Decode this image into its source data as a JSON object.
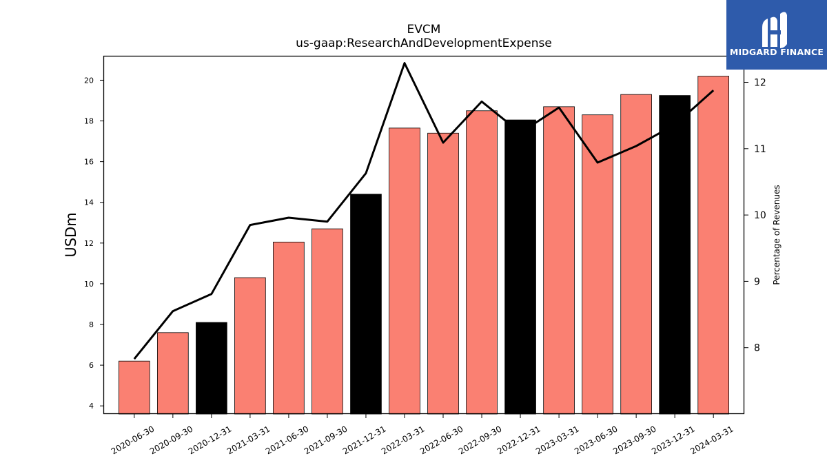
{
  "brand": {
    "name": "MIDGARD FINANCE",
    "bg_color": "#2e5bab",
    "icon": "midgard-logo-icon"
  },
  "chart_data": {
    "type": "bar",
    "title": "EVCM",
    "subtitle": "us-gaap:ResearchAndDevelopmentExpense",
    "ylabel": "USDm",
    "y2label": "Percentage of Revenues",
    "ylim": [
      3.6,
      21.2
    ],
    "y2lim": [
      7.0,
      12.4
    ],
    "yticks": [
      4,
      6,
      8,
      10,
      12,
      14,
      16,
      18,
      20
    ],
    "y2ticks": [
      8,
      9,
      10,
      11,
      12
    ],
    "grid": false,
    "categories": [
      "2020-06-30",
      "2020-09-30",
      "2020-12-31",
      "2021-03-31",
      "2021-06-30",
      "2021-09-30",
      "2021-12-31",
      "2022-03-31",
      "2022-06-30",
      "2022-09-30",
      "2022-12-31",
      "2023-03-31",
      "2023-06-30",
      "2023-09-30",
      "2023-12-31",
      "2024-03-31"
    ],
    "series": [
      {
        "kind": "bar",
        "axis": "left",
        "color": "#fa8072",
        "highlight_color": "#000000",
        "highlight_indices": [
          2,
          6,
          10,
          14
        ],
        "values": [
          6.2,
          7.6,
          8.1,
          10.3,
          12.05,
          12.7,
          14.4,
          17.65,
          17.4,
          18.5,
          18.05,
          18.7,
          18.3,
          19.3,
          19.25,
          20.2
        ]
      },
      {
        "kind": "line",
        "axis": "right",
        "color": "#000000",
        "values": [
          7.83,
          8.55,
          8.81,
          9.85,
          9.96,
          9.9,
          10.63,
          12.29,
          11.09,
          11.71,
          11.24,
          11.62,
          10.79,
          11.04,
          11.36,
          11.88
        ]
      }
    ]
  }
}
